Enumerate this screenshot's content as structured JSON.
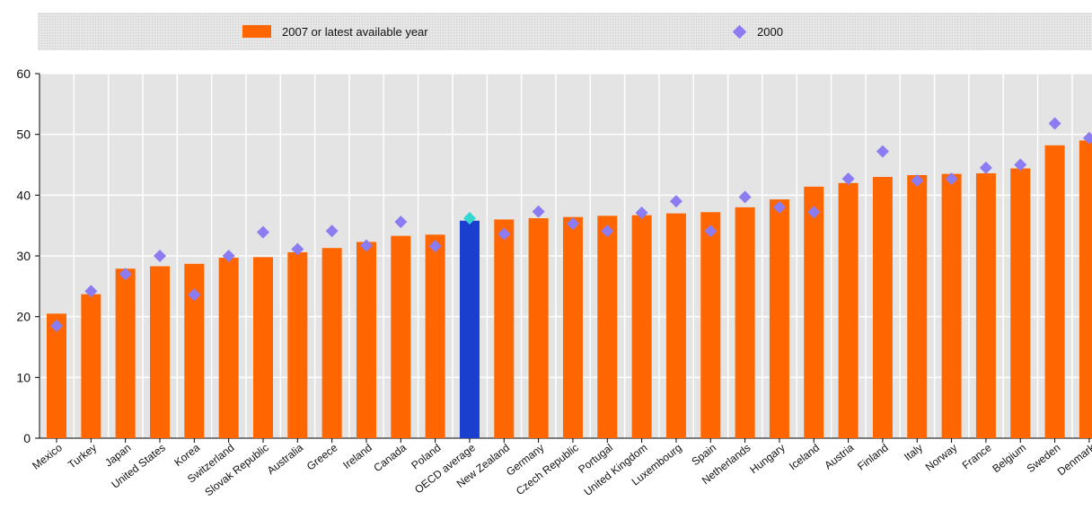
{
  "chart_data": {
    "type": "bar",
    "title": "",
    "xlabel": "",
    "ylabel": "",
    "ylim": [
      0,
      60
    ],
    "yticks": [
      0,
      10,
      20,
      30,
      40,
      50,
      60
    ],
    "grid": true,
    "legend_position": "top",
    "categories": [
      "Mexico",
      "Turkey",
      "Japan",
      "United States",
      "Korea",
      "Switzerland",
      "Slovak Republic",
      "Australia",
      "Greece",
      "Ireland",
      "Canada",
      "Poland",
      "OECD average",
      "New Zealand",
      "Germany",
      "Czech Republic",
      "Portugal",
      "United Kingdom",
      "Luxembourg",
      "Spain",
      "Netherlands",
      "Hungary",
      "Iceland",
      "Austria",
      "Finland",
      "Italy",
      "Norway",
      "France",
      "Belgium",
      "Sweden",
      "Denmark"
    ],
    "series": [
      {
        "name": "2007 or latest available year",
        "kind": "bar",
        "color": "#ff6600",
        "highlight": {
          "category": "OECD average",
          "color": "#1a3fcf"
        },
        "values": [
          20.5,
          23.7,
          27.9,
          28.3,
          28.7,
          29.7,
          29.8,
          30.6,
          31.3,
          32.3,
          33.3,
          33.5,
          35.8,
          36.0,
          36.2,
          36.4,
          36.6,
          36.7,
          37.0,
          37.2,
          38.0,
          39.3,
          41.4,
          42.0,
          43.0,
          43.3,
          43.5,
          43.6,
          44.4,
          48.2,
          49.0
        ]
      },
      {
        "name": "2000",
        "kind": "marker",
        "color": "#8b7cf2",
        "highlight": {
          "category": "OECD average",
          "color": "#33d6d0"
        },
        "values": [
          18.5,
          24.2,
          27.0,
          30.0,
          23.6,
          30.0,
          33.9,
          31.1,
          34.1,
          31.7,
          35.6,
          31.6,
          36.2,
          33.6,
          37.3,
          35.3,
          34.1,
          37.1,
          39.0,
          34.1,
          39.7,
          38.0,
          37.2,
          42.7,
          47.2,
          42.4,
          42.7,
          44.5,
          45.0,
          51.8,
          49.4
        ]
      }
    ]
  }
}
